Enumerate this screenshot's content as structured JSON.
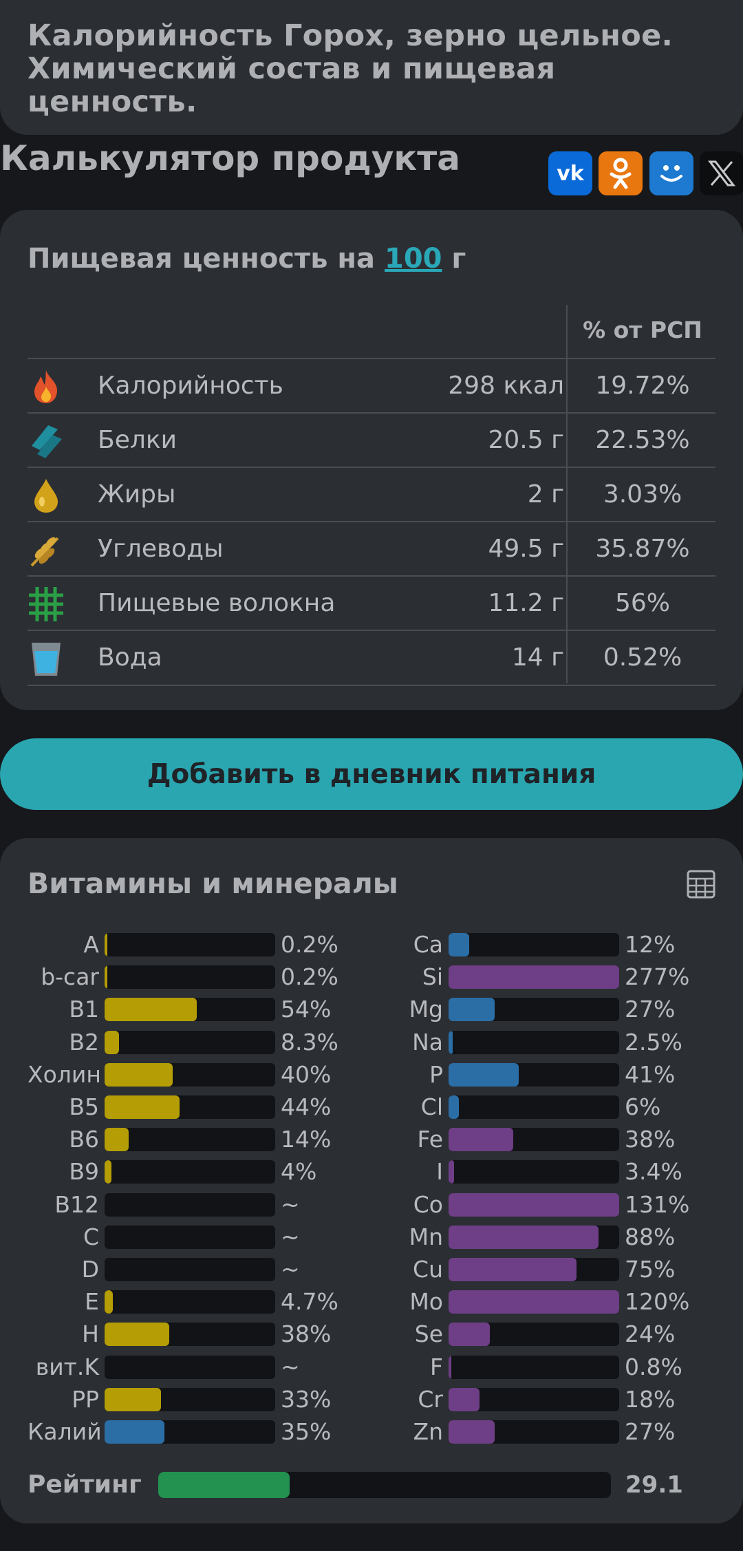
{
  "page_title": "Калорийность Горох, зерно цельное. Химический состав и пищевая ценность.",
  "calculator": {
    "heading": "Калькулятор продукта",
    "share": [
      "vk-icon",
      "ok-icon",
      "moimir-icon",
      "x-icon"
    ]
  },
  "nutrition": {
    "heading_prefix": "Пищевая ценность на",
    "amount": "100",
    "unit": "г",
    "rsp_header": "% от РСП",
    "rows": [
      {
        "icon": "fire-icon",
        "label": "Калорийность",
        "amount": "298 ккал",
        "percent": "19.72%"
      },
      {
        "icon": "protein-icon",
        "label": "Белки",
        "amount": "20.5 г",
        "percent": "22.53%"
      },
      {
        "icon": "oil-drop-icon",
        "label": "Жиры",
        "amount": "2 г",
        "percent": "3.03%"
      },
      {
        "icon": "wheat-icon",
        "label": "Углеводы",
        "amount": "49.5 г",
        "percent": "35.87%"
      },
      {
        "icon": "fiber-grid-icon",
        "label": "Пищевые волокна",
        "amount": "11.2 г",
        "percent": "56%"
      },
      {
        "icon": "water-glass-icon",
        "label": "Вода",
        "amount": "14 г",
        "percent": "0.52%"
      }
    ]
  },
  "diary_button": "Добавить в дневник питания",
  "vitamins": {
    "heading": "Витамины и минералы",
    "colors": {
      "vitamin": "#b49d05",
      "macro": "#2b6ea6",
      "micro": "#6e3f86"
    },
    "left": [
      {
        "label": "A",
        "value": "0.2%",
        "percent": 0.2,
        "kind": "vitamin"
      },
      {
        "label": "b-car",
        "value": "0.2%",
        "percent": 0.2,
        "kind": "vitamin"
      },
      {
        "label": "B1",
        "value": "54%",
        "percent": 54,
        "kind": "vitamin"
      },
      {
        "label": "B2",
        "value": "8.3%",
        "percent": 8.3,
        "kind": "vitamin"
      },
      {
        "label": "Холин",
        "value": "40%",
        "percent": 40,
        "kind": "vitamin"
      },
      {
        "label": "B5",
        "value": "44%",
        "percent": 44,
        "kind": "vitamin"
      },
      {
        "label": "B6",
        "value": "14%",
        "percent": 14,
        "kind": "vitamin"
      },
      {
        "label": "B9",
        "value": "4%",
        "percent": 4,
        "kind": "vitamin"
      },
      {
        "label": "B12",
        "value": "~",
        "percent": 0,
        "kind": "vitamin"
      },
      {
        "label": "C",
        "value": "~",
        "percent": 0,
        "kind": "vitamin"
      },
      {
        "label": "D",
        "value": "~",
        "percent": 0,
        "kind": "vitamin"
      },
      {
        "label": "E",
        "value": "4.7%",
        "percent": 4.7,
        "kind": "vitamin"
      },
      {
        "label": "H",
        "value": "38%",
        "percent": 38,
        "kind": "vitamin"
      },
      {
        "label": "вит.K",
        "value": "~",
        "percent": 0,
        "kind": "vitamin"
      },
      {
        "label": "PP",
        "value": "33%",
        "percent": 33,
        "kind": "vitamin"
      },
      {
        "label": "Калий",
        "value": "35%",
        "percent": 35,
        "kind": "macro"
      }
    ],
    "right": [
      {
        "label": "Ca",
        "value": "12%",
        "percent": 12,
        "kind": "macro"
      },
      {
        "label": "Si",
        "value": "277%",
        "percent": 277,
        "kind": "micro"
      },
      {
        "label": "Mg",
        "value": "27%",
        "percent": 27,
        "kind": "macro"
      },
      {
        "label": "Na",
        "value": "2.5%",
        "percent": 2.5,
        "kind": "macro"
      },
      {
        "label": "P",
        "value": "41%",
        "percent": 41,
        "kind": "macro"
      },
      {
        "label": "Cl",
        "value": "6%",
        "percent": 6,
        "kind": "macro"
      },
      {
        "label": "Fe",
        "value": "38%",
        "percent": 38,
        "kind": "micro"
      },
      {
        "label": "I",
        "value": "3.4%",
        "percent": 3.4,
        "kind": "micro"
      },
      {
        "label": "Co",
        "value": "131%",
        "percent": 131,
        "kind": "micro"
      },
      {
        "label": "Mn",
        "value": "88%",
        "percent": 88,
        "kind": "micro"
      },
      {
        "label": "Cu",
        "value": "75%",
        "percent": 75,
        "kind": "micro"
      },
      {
        "label": "Mo",
        "value": "120%",
        "percent": 120,
        "kind": "micro"
      },
      {
        "label": "Se",
        "value": "24%",
        "percent": 24,
        "kind": "micro"
      },
      {
        "label": "F",
        "value": "0.8%",
        "percent": 0.8,
        "kind": "micro"
      },
      {
        "label": "Cr",
        "value": "18%",
        "percent": 18,
        "kind": "micro"
      },
      {
        "label": "Zn",
        "value": "27%",
        "percent": 27,
        "kind": "micro"
      }
    ]
  },
  "rating": {
    "label": "Рейтинг",
    "value": "29.1",
    "fill_fraction": 0.29,
    "color": "#239150"
  }
}
